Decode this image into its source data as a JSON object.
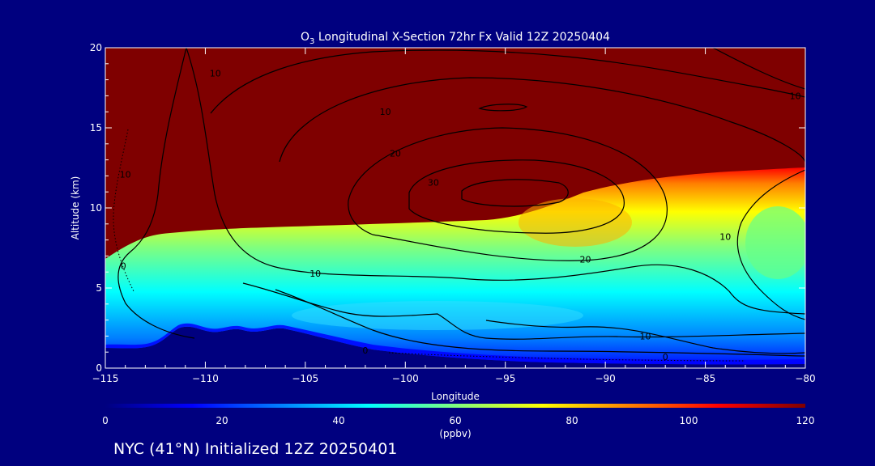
{
  "chart_data": {
    "type": "heatmap",
    "title_parts": [
      "O",
      "3",
      " Longitudinal X-Section 72hr  Fx Valid 12Z 20250404"
    ],
    "xlabel": "Longitude",
    "ylabel": "Altitude (km)",
    "xlim": [
      -115,
      -80
    ],
    "ylim": [
      0,
      20
    ],
    "x_ticks": [
      "−115",
      "−110",
      "−105",
      "−100",
      "−95",
      "−90",
      "−85",
      "−80"
    ],
    "y_ticks": [
      "0",
      "5",
      "10",
      "15",
      "20"
    ],
    "colorbar": {
      "min": 0,
      "max": 120,
      "ticks": [
        "0",
        "20",
        "40",
        "60",
        "80",
        "100",
        "120"
      ],
      "unit": "(ppbv)",
      "colors": [
        "#00007f",
        "#0000ff",
        "#007fff",
        "#00ffff",
        "#7fff7f",
        "#ffff00",
        "#ff7f00",
        "#ff0000",
        "#7f0000"
      ]
    },
    "contour_labels": [
      {
        "text": "10",
        "lon": -114.0,
        "alt": 12.1
      },
      {
        "text": "0",
        "lon": -114.1,
        "alt": 6.4
      },
      {
        "text": "10",
        "lon": -109.5,
        "alt": 18.4
      },
      {
        "text": "10",
        "lon": -104.5,
        "alt": 5.9
      },
      {
        "text": "10",
        "lon": -101.0,
        "alt": 16.0
      },
      {
        "text": "20",
        "lon": -100.5,
        "alt": 13.4
      },
      {
        "text": "30",
        "lon": -98.6,
        "alt": 11.6
      },
      {
        "text": "20",
        "lon": -91.0,
        "alt": 6.8
      },
      {
        "text": "10",
        "lon": -84.0,
        "alt": 8.2
      },
      {
        "text": "10",
        "lon": -80.5,
        "alt": 17.0
      },
      {
        "text": "10",
        "lon": -88.0,
        "alt": 2.0
      },
      {
        "text": "0",
        "lon": -87.0,
        "alt": 0.7
      },
      {
        "text": "0",
        "lon": -102.0,
        "alt": 1.1
      }
    ]
  },
  "footer": {
    "init_text": "NYC (41°N) Initialized 12Z 20250401"
  }
}
